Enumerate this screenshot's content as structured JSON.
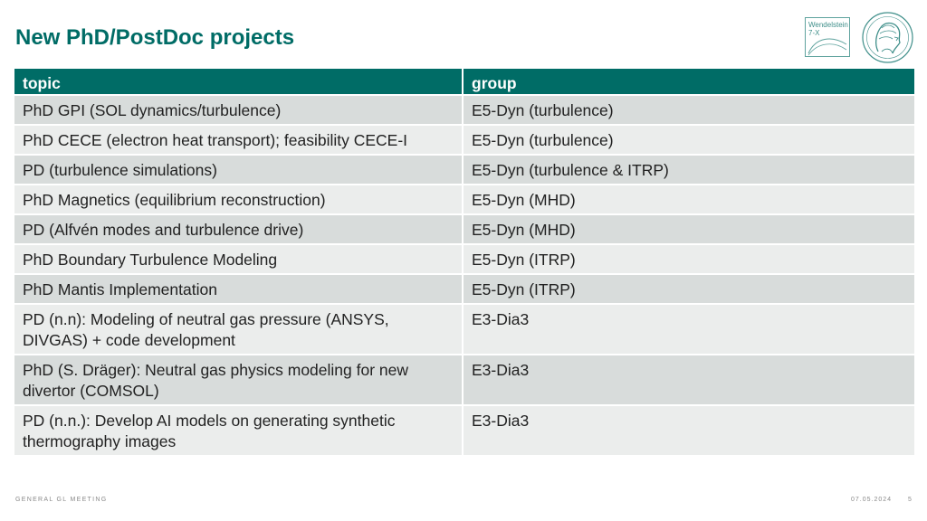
{
  "slide": {
    "title": "New PhD/PostDoc projects"
  },
  "logos": {
    "w7x_line1": "Wendelstein",
    "w7x_line2": "7-X"
  },
  "colors": {
    "accent": "#006c66",
    "row_dark": "#d8dcdb",
    "row_light": "#ebedec"
  },
  "table": {
    "headers": [
      "topic",
      "group"
    ],
    "rows": [
      [
        "PhD GPI (SOL dynamics/turbulence)",
        "E5-Dyn (turbulence)"
      ],
      [
        "PhD CECE (electron heat transport); feasibility CECE-I",
        "E5-Dyn (turbulence)"
      ],
      [
        "PD (turbulence simulations)",
        "E5-Dyn (turbulence & ITRP)"
      ],
      [
        "PhD Magnetics (equilibrium reconstruction)",
        "E5-Dyn (MHD)"
      ],
      [
        "PD (Alfvén modes and turbulence drive)",
        "E5-Dyn (MHD)"
      ],
      [
        "PhD Boundary Turbulence Modeling",
        "E5-Dyn (ITRP)"
      ],
      [
        "PhD Mantis Implementation",
        "E5-Dyn (ITRP)"
      ],
      [
        "PD (n.n): Modeling of neutral gas pressure (ANSYS, DIVGAS) + code development",
        "E3-Dia3"
      ],
      [
        "PhD (S. Dräger): Neutral gas physics modeling for new divertor (COMSOL)",
        "E3-Dia3"
      ],
      [
        "PD (n.n.): Develop AI models on generating synthetic thermography images",
        "E3-Dia3"
      ]
    ]
  },
  "footer": {
    "left": "GENERAL GL MEETING",
    "date": "07.05.2024",
    "page": "5"
  }
}
